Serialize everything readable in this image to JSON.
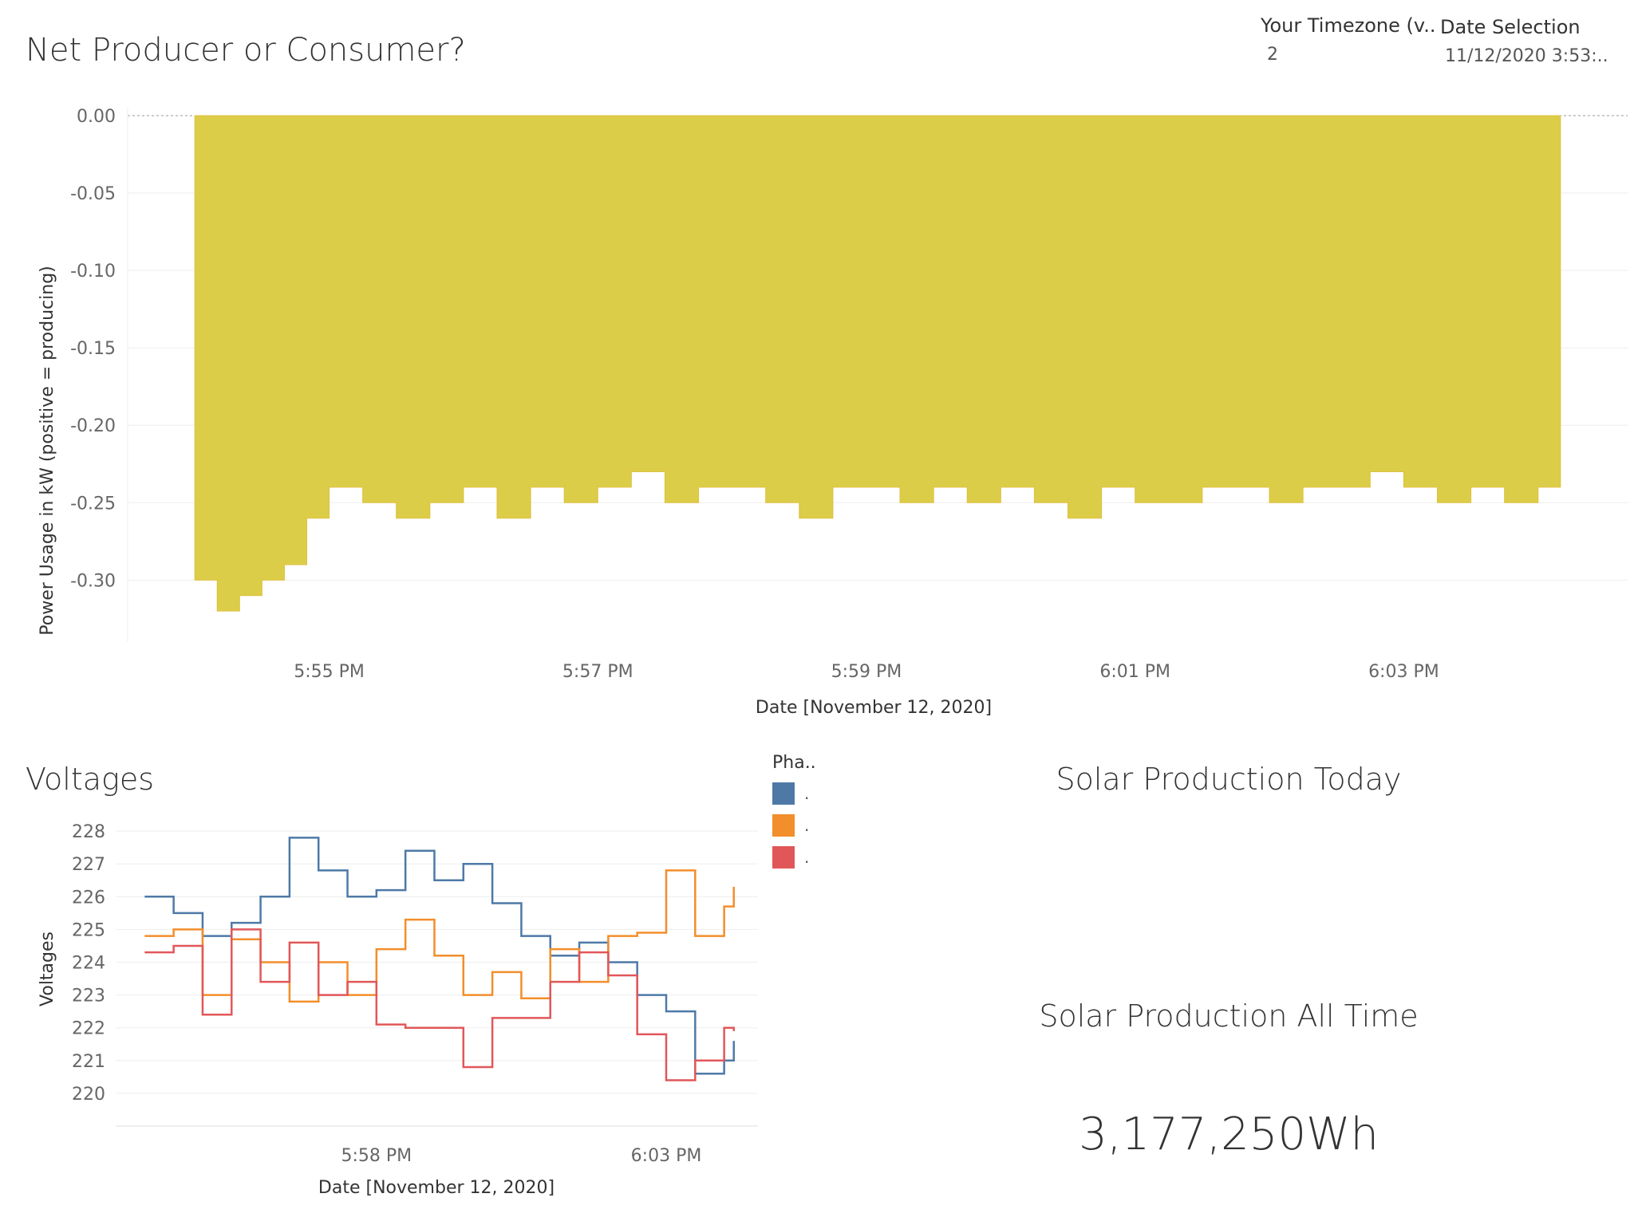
{
  "header": {
    "title": "Net Producer or Consumer?",
    "timezone_label": "Your Timezone (v..",
    "timezone_value": "2",
    "date_label": "Date Selection",
    "date_value": "11/12/2020 3:53:.."
  },
  "colors": {
    "net_bar": "#dccd48",
    "net_bar_dark": "#dfbf3c",
    "phase1": "#4e79a7",
    "phase2": "#f28e2b",
    "phase3": "#e15759",
    "axis_text": "#666666",
    "gridline": "#eeeeee"
  },
  "voltages": {
    "title": "Voltages",
    "legend_title": "Pha..",
    "legend_items": [
      {
        "label": ".",
        "color": "#4e79a7"
      },
      {
        "label": ".",
        "color": "#f28e2b"
      },
      {
        "label": ".",
        "color": "#e15759"
      }
    ]
  },
  "solar": {
    "today_title": "Solar Production Today",
    "all_time_title": "Solar Production All Time",
    "all_time_value": "3,177,250Wh"
  },
  "chart_data": [
    {
      "type": "area",
      "title": "Net Producer or Consumer?",
      "xlabel": "Date [November 12, 2020]",
      "ylabel": "Power Usage in kW (positive = producing)",
      "ylim": [
        -0.34,
        0.0
      ],
      "yticks": [
        "0.00",
        "-0.05",
        "-0.10",
        "-0.15",
        "-0.20",
        "-0.25",
        "-0.30"
      ],
      "ytick_values": [
        0.0,
        -0.05,
        -0.1,
        -0.15,
        -0.2,
        -0.25,
        -0.3
      ],
      "xlim_minutes": [
        "5:53:30 PM",
        "6:04:40 PM"
      ],
      "xticks": [
        "5:55 PM",
        "5:57 PM",
        "5:59 PM",
        "6:01 PM",
        "6:03 PM"
      ],
      "xtick_values": [
        "5:55 PM",
        "5:57 PM",
        "5:59 PM",
        "6:01 PM",
        "6:03 PM"
      ],
      "zero_reference_line": true,
      "x": [
        "5:54:00 PM",
        "5:54:10 PM",
        "5:54:20 PM",
        "5:54:30 PM",
        "5:54:40 PM",
        "5:54:50 PM",
        "5:55:00 PM",
        "5:55:15 PM",
        "5:55:30 PM",
        "5:55:45 PM",
        "5:56:00 PM",
        "5:56:15 PM",
        "5:56:30 PM",
        "5:56:45 PM",
        "5:57:00 PM",
        "5:57:15 PM",
        "5:57:30 PM",
        "5:57:45 PM",
        "5:58:00 PM",
        "5:58:15 PM",
        "5:58:30 PM",
        "5:58:45 PM",
        "5:59:00 PM",
        "5:59:15 PM",
        "5:59:30 PM",
        "5:59:45 PM",
        "6:00:00 PM",
        "6:00:15 PM",
        "6:00:30 PM",
        "6:00:45 PM",
        "6:01:00 PM",
        "6:01:15 PM",
        "6:01:30 PM",
        "6:01:45 PM",
        "6:02:00 PM",
        "6:02:15 PM",
        "6:02:30 PM",
        "6:02:45 PM",
        "6:03:00 PM",
        "6:03:15 PM",
        "6:03:30 PM",
        "6:03:45 PM",
        "6:04:00 PM",
        "6:04:10 PM"
      ],
      "values": [
        -0.3,
        -0.32,
        -0.31,
        -0.3,
        -0.29,
        -0.26,
        -0.24,
        -0.25,
        -0.26,
        -0.25,
        -0.24,
        -0.26,
        -0.24,
        -0.25,
        -0.24,
        -0.23,
        -0.25,
        -0.24,
        -0.24,
        -0.25,
        -0.26,
        -0.24,
        -0.24,
        -0.25,
        -0.24,
        -0.25,
        -0.24,
        -0.25,
        -0.26,
        -0.24,
        -0.25,
        -0.25,
        -0.24,
        -0.24,
        -0.25,
        -0.24,
        -0.24,
        -0.23,
        -0.24,
        -0.25,
        -0.24,
        -0.25,
        -0.24,
        -0.24
      ]
    },
    {
      "type": "line",
      "title": "Voltages",
      "xlabel": "Date [November 12, 2020]",
      "ylabel": "Voltages",
      "ylim": [
        219,
        228.1
      ],
      "yticks": [
        "228",
        "227",
        "226",
        "225",
        "224",
        "223",
        "222",
        "221",
        "220"
      ],
      "ytick_values": [
        228,
        227,
        226,
        225,
        224,
        223,
        222,
        221,
        220
      ],
      "xticks": [
        "5:58 PM",
        "6:03 PM"
      ],
      "xtick_values": [
        "5:58 PM",
        "6:03 PM"
      ],
      "x": [
        "5:54:00 PM",
        "5:54:30 PM",
        "5:55:00 PM",
        "5:55:30 PM",
        "5:56:00 PM",
        "5:56:30 PM",
        "5:57:00 PM",
        "5:57:30 PM",
        "5:58:00 PM",
        "5:58:30 PM",
        "5:59:00 PM",
        "5:59:30 PM",
        "6:00:00 PM",
        "6:00:30 PM",
        "6:01:00 PM",
        "6:01:30 PM",
        "6:02:00 PM",
        "6:02:30 PM",
        "6:03:00 PM",
        "6:03:30 PM",
        "6:04:00 PM",
        "6:04:10 PM"
      ],
      "series": [
        {
          "color": "#4e79a7",
          "values": [
            226.0,
            225.5,
            224.8,
            225.2,
            226.0,
            227.8,
            226.8,
            226.0,
            226.2,
            227.4,
            226.5,
            227.0,
            225.8,
            224.8,
            224.2,
            224.6,
            224.0,
            223.0,
            222.5,
            220.6,
            221.0,
            221.6
          ]
        },
        {
          "color": "#f28e2b",
          "values": [
            224.8,
            225.0,
            223.0,
            224.7,
            224.0,
            222.8,
            224.0,
            223.0,
            224.4,
            225.3,
            224.2,
            223.0,
            223.7,
            222.9,
            224.4,
            223.4,
            224.8,
            224.9,
            226.8,
            224.8,
            225.7,
            226.3
          ]
        },
        {
          "color": "#e15759",
          "values": [
            224.3,
            224.5,
            222.4,
            225.0,
            223.4,
            224.6,
            223.0,
            223.4,
            222.1,
            222.0,
            222.0,
            220.8,
            222.3,
            222.3,
            223.4,
            224.3,
            223.6,
            221.8,
            220.4,
            221.0,
            222.0,
            221.9
          ]
        }
      ]
    }
  ]
}
